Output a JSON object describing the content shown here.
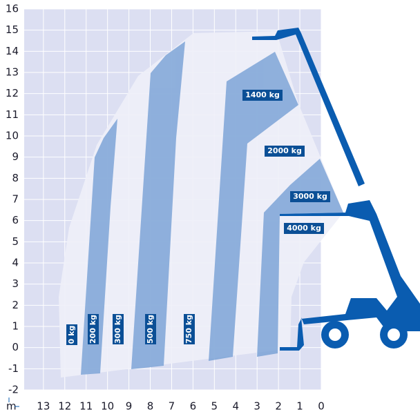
{
  "chart_data": {
    "type": "load-chart",
    "x_unit": "m",
    "xlim": [
      13.9,
      0
    ],
    "ylim": [
      -2,
      16
    ],
    "xticks": [
      13,
      12,
      11,
      10,
      9,
      8,
      7,
      6,
      5,
      4,
      3,
      2,
      1,
      0
    ],
    "yticks": [
      -2,
      -1,
      0,
      1,
      2,
      3,
      4,
      5,
      6,
      7,
      8,
      9,
      10,
      11,
      12,
      13,
      14,
      15,
      16
    ],
    "grid": true,
    "zone_labels": [
      "0 kg",
      "200 kg",
      "300 kg",
      "500 kg",
      "750 kg",
      "1400 kg",
      "2000 kg",
      "3000 kg",
      "4000 kg"
    ]
  }
}
